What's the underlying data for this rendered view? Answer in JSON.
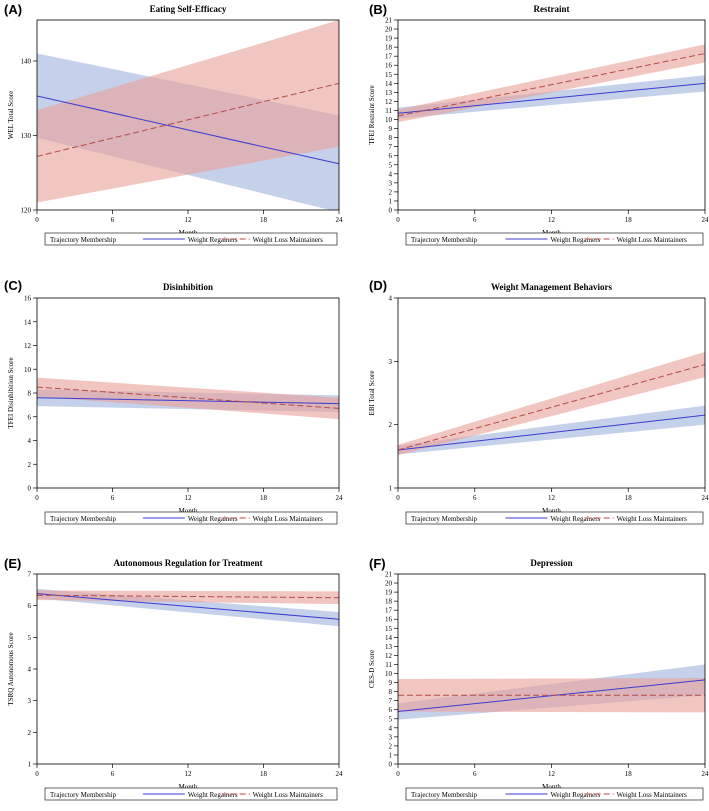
{
  "legend": {
    "title": "Trajectory Membership",
    "regainers_label": "Weight Regainers",
    "maintainers_label": "Weight Loss Maintainers"
  },
  "colors": {
    "regainers_line": "#3b3bd1",
    "regainers_band": "#9fb0dc",
    "maintainers_line": "#b54a4a",
    "maintainers_band": "#eaa096",
    "axis": "#000000"
  },
  "chart_data": [
    {
      "letter": "(A)",
      "type": "line",
      "title": "Eating Self-Efficacy",
      "xlabel": "Month",
      "ylabel": "WEL Total Score",
      "xlim": [
        0,
        24
      ],
      "ylim": [
        120,
        145.5
      ],
      "x_ticks": [
        0,
        6,
        12,
        18,
        24
      ],
      "y_ticks": [
        120,
        130,
        140
      ],
      "series": [
        {
          "name": "Weight Regainers",
          "x": [
            0,
            24
          ],
          "values": [
            135.3,
            126.2
          ],
          "lower": [
            129.7,
            119.7
          ],
          "upper": [
            141.0,
            132.7
          ]
        },
        {
          "name": "Weight Loss Maintainers",
          "x": [
            0,
            24
          ],
          "values": [
            127.2,
            137.0
          ],
          "lower": [
            121.0,
            128.5
          ],
          "upper": [
            133.4,
            145.5
          ]
        }
      ]
    },
    {
      "letter": "(B)",
      "type": "line",
      "title": "Restraint",
      "xlabel": "Month",
      "ylabel": "TFEI Restraint Score",
      "xlim": [
        0,
        24
      ],
      "ylim": [
        0,
        21
      ],
      "x_ticks": [
        0,
        6,
        12,
        18,
        24
      ],
      "y_ticks": [
        0,
        1,
        2,
        3,
        4,
        5,
        6,
        7,
        8,
        9,
        10,
        11,
        12,
        13,
        14,
        15,
        16,
        17,
        18,
        19,
        20,
        21
      ],
      "series": [
        {
          "name": "Weight Regainers",
          "x": [
            0,
            24
          ],
          "values": [
            10.7,
            14.0
          ],
          "lower": [
            10.1,
            13.1
          ],
          "upper": [
            11.3,
            14.9
          ]
        },
        {
          "name": "Weight Loss Maintainers",
          "x": [
            0,
            24
          ],
          "values": [
            10.4,
            17.3
          ],
          "lower": [
            9.7,
            16.3
          ],
          "upper": [
            11.1,
            18.3
          ]
        }
      ]
    },
    {
      "letter": "(C)",
      "type": "line",
      "title": "Disinhibition",
      "xlabel": "Month",
      "ylabel": "TFEI Disinhibition Score",
      "xlim": [
        0,
        24
      ],
      "ylim": [
        0,
        16
      ],
      "x_ticks": [
        0,
        6,
        12,
        18,
        24
      ],
      "y_ticks": [
        0,
        2,
        4,
        6,
        8,
        10,
        12,
        14,
        16
      ],
      "series": [
        {
          "name": "Weight Regainers",
          "x": [
            0,
            24
          ],
          "values": [
            7.6,
            7.1
          ],
          "lower": [
            6.9,
            6.4
          ],
          "upper": [
            8.3,
            7.8
          ]
        },
        {
          "name": "Weight Loss Maintainers",
          "x": [
            0,
            24
          ],
          "values": [
            8.5,
            6.7
          ],
          "lower": [
            7.7,
            5.8
          ],
          "upper": [
            9.3,
            7.6
          ]
        }
      ]
    },
    {
      "letter": "(D)",
      "type": "line",
      "title": "Weight Management Behaviors",
      "xlabel": "Month",
      "ylabel": "EBI Total Score",
      "xlim": [
        0,
        24
      ],
      "ylim": [
        1,
        4
      ],
      "x_ticks": [
        0,
        6,
        12,
        18,
        24
      ],
      "y_ticks": [
        1,
        2,
        3,
        4
      ],
      "series": [
        {
          "name": "Weight Regainers",
          "x": [
            0,
            24
          ],
          "values": [
            1.6,
            2.15
          ],
          "lower": [
            1.53,
            2.0
          ],
          "upper": [
            1.67,
            2.3
          ]
        },
        {
          "name": "Weight Loss Maintainers",
          "x": [
            0,
            24
          ],
          "values": [
            1.6,
            2.95
          ],
          "lower": [
            1.52,
            2.75
          ],
          "upper": [
            1.68,
            3.15
          ]
        }
      ]
    },
    {
      "letter": "(E)",
      "type": "line",
      "title": "Autonomous Regulation for Treatment",
      "xlabel": "Month",
      "ylabel": "TSRQ Autonomous Score",
      "xlim": [
        0,
        24
      ],
      "ylim": [
        1,
        7
      ],
      "x_ticks": [
        0,
        6,
        12,
        18,
        24
      ],
      "y_ticks": [
        1,
        2,
        3,
        4,
        5,
        6,
        7
      ],
      "series": [
        {
          "name": "Weight Regainers",
          "x": [
            0,
            24
          ],
          "values": [
            6.38,
            5.57
          ],
          "lower": [
            6.23,
            5.35
          ],
          "upper": [
            6.53,
            5.8
          ]
        },
        {
          "name": "Weight Loss Maintainers",
          "x": [
            0,
            24
          ],
          "values": [
            6.33,
            6.25
          ],
          "lower": [
            6.18,
            6.05
          ],
          "upper": [
            6.48,
            6.45
          ]
        }
      ]
    },
    {
      "letter": "(F)",
      "type": "line",
      "title": "Depression",
      "xlabel": "Month",
      "ylabel": "CES-D Score",
      "xlim": [
        0,
        24
      ],
      "ylim": [
        0,
        21
      ],
      "x_ticks": [
        0,
        6,
        12,
        18,
        24
      ],
      "y_ticks": [
        0,
        1,
        2,
        3,
        4,
        5,
        6,
        7,
        8,
        9,
        10,
        11,
        12,
        13,
        14,
        15,
        16,
        17,
        18,
        19,
        20,
        21
      ],
      "series": [
        {
          "name": "Weight Regainers",
          "x": [
            0,
            24
          ],
          "values": [
            5.8,
            9.3
          ],
          "lower": [
            4.9,
            7.6
          ],
          "upper": [
            6.7,
            11.0
          ]
        },
        {
          "name": "Weight Loss Maintainers",
          "x": [
            0,
            24
          ],
          "values": [
            7.6,
            7.6
          ],
          "lower": [
            5.8,
            5.7
          ],
          "upper": [
            9.4,
            9.5
          ]
        }
      ]
    }
  ]
}
